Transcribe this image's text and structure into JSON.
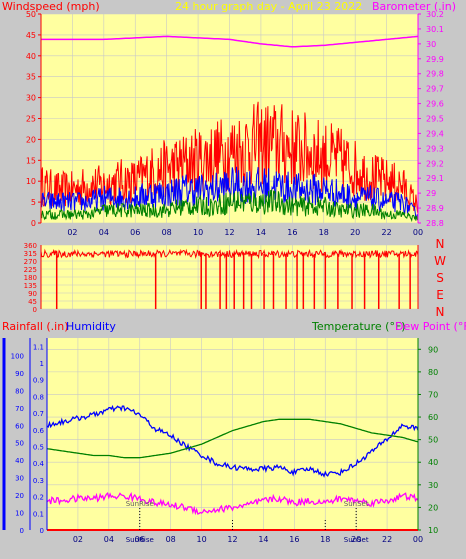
{
  "colors": {
    "background": "#c8c8c8",
    "plot_area": "#ffffa0",
    "grid": "#c8c8c8",
    "windspeed": "#ff0000",
    "wind_gust_mid": "#0000ff",
    "wind_low": "#008000",
    "barometer": "#ff00ff",
    "direction": "#ff0000",
    "rainfall": "#ff0000",
    "humidity": "#0000ff",
    "temperature": "#008000",
    "dewpoint": "#ff00ff",
    "title": "#ffff00",
    "rain_axis": "#0000ff",
    "sun_marker": "#000000"
  },
  "chart_data": [
    {
      "type": "line",
      "name": "wind-barometer",
      "title": "24 hour graph day - April 23 2022",
      "left_label": "Windspeed (mph)",
      "right_label": "Barometer (.in)",
      "x_ticks": [
        "02",
        "04",
        "06",
        "08",
        "10",
        "12",
        "14",
        "16",
        "18",
        "20",
        "22",
        "00"
      ],
      "y_left_ticks": [
        "0",
        "5",
        "10",
        "15",
        "20",
        "25",
        "30",
        "35",
        "40",
        "45",
        "50"
      ],
      "y_left_range": [
        0,
        50
      ],
      "y_right_ticks": [
        "28.8",
        "28.9",
        "29",
        "29.1",
        "29.2",
        "29.3",
        "29.4",
        "29.5",
        "29.6",
        "29.7",
        "29.8",
        "29.9",
        "30",
        "30.1",
        "30.2"
      ],
      "y_right_range": [
        28.8,
        30.2
      ],
      "grid": true,
      "series": [
        {
          "role": "windspeed-high",
          "color": "#ff0000",
          "hour": [
            0,
            1,
            2,
            3,
            4,
            5,
            6,
            7,
            8,
            9,
            10,
            11,
            12,
            13,
            14,
            15,
            16,
            17,
            18,
            19,
            20,
            21,
            22,
            23,
            24
          ],
          "y": [
            9,
            8,
            8,
            9,
            9,
            10,
            10,
            12,
            13,
            14,
            15,
            16,
            17,
            18,
            19,
            19,
            18,
            17,
            16,
            15,
            13,
            11,
            10,
            9,
            4
          ]
        },
        {
          "role": "windspeed-mid",
          "color": "#0000ff",
          "hour": [
            0,
            1,
            2,
            3,
            4,
            5,
            6,
            7,
            8,
            9,
            10,
            11,
            12,
            13,
            14,
            15,
            16,
            17,
            18,
            19,
            20,
            21,
            22,
            23,
            24
          ],
          "y": [
            5,
            5,
            5,
            5,
            6,
            6,
            6,
            7,
            7,
            8,
            8,
            8,
            9,
            9,
            9,
            9,
            8,
            8,
            8,
            7,
            6,
            6,
            5,
            5,
            2
          ]
        },
        {
          "role": "windspeed-low",
          "color": "#008000",
          "hour": [
            0,
            1,
            2,
            3,
            4,
            5,
            6,
            7,
            8,
            9,
            10,
            11,
            12,
            13,
            14,
            15,
            16,
            17,
            18,
            19,
            20,
            21,
            22,
            23,
            24
          ],
          "y": [
            2,
            2,
            2,
            2,
            3,
            3,
            3,
            3,
            3,
            4,
            4,
            4,
            5,
            5,
            5,
            5,
            4,
            4,
            4,
            3,
            3,
            3,
            2,
            2,
            1
          ]
        },
        {
          "role": "barometer",
          "color": "#ff00ff",
          "axis": "right",
          "hour": [
            0,
            2,
            4,
            6,
            8,
            10,
            12,
            14,
            16,
            18,
            20,
            22,
            24
          ],
          "y": [
            30.03,
            30.03,
            30.03,
            30.04,
            30.05,
            30.04,
            30.03,
            30.0,
            29.98,
            29.99,
            30.01,
            30.03,
            30.05
          ]
        }
      ]
    },
    {
      "type": "scatter",
      "name": "wind-direction",
      "y_ticks": [
        "360",
        "315",
        "270",
        "225",
        "180",
        "135",
        "90",
        "45",
        "0"
      ],
      "y_range": [
        0,
        360
      ],
      "compass_labels": [
        "N",
        "W",
        "S",
        "E",
        "N"
      ],
      "x_ticks": [],
      "grid": true,
      "series": [
        {
          "role": "direction",
          "color": "#ff0000",
          "segments": [
            {
              "from": 0,
              "to": 24,
              "base_deg": 310
            },
            {
              "drop_hours": [
                1.0,
                7.3,
                10.2,
                10.5,
                11.4,
                11.8,
                12.3,
                12.9,
                13.4,
                14.2,
                14.8,
                15.6,
                16.3,
                16.7,
                17.4,
                18.1,
                18.9,
                19.8,
                20.6,
                21.5,
                22.8,
                23.5
              ],
              "drop_to_deg": 0
            }
          ]
        }
      ]
    },
    {
      "type": "line",
      "name": "rain-humidity-temp",
      "left_label_1": "Rainfall (.in)",
      "left_label_2": "Humidity",
      "right_label_1": "Temperature (°F)",
      "right_label_2": "Dew Point (°F)",
      "x_ticks": [
        "02",
        "04",
        "06",
        "08",
        "10",
        "12",
        "14",
        "16",
        "18",
        "20",
        "22",
        "00"
      ],
      "rain_ticks": [
        "0",
        "0.1",
        "0.2",
        "0.3",
        "0.4",
        "0.5",
        "0.6",
        "0.7",
        "0.8",
        "0.9",
        "1",
        "1.1"
      ],
      "rain_range": [
        0,
        1.15
      ],
      "humidity_ticks": [
        "0",
        "10",
        "20",
        "30",
        "40",
        "50",
        "60",
        "70",
        "80",
        "90",
        "100"
      ],
      "humidity_range": [
        0,
        110
      ],
      "temp_ticks": [
        "10",
        "20",
        "30",
        "40",
        "50",
        "60",
        "70",
        "80",
        "90"
      ],
      "temp_range": [
        10,
        95
      ],
      "sun_markers": [
        {
          "label": "SunRise",
          "hour": 6.0
        },
        {
          "label": "SunSet",
          "hour": 20.0
        }
      ],
      "extra_markers_hours": [
        12.0,
        18.0
      ],
      "grid": true,
      "series": [
        {
          "role": "humidity",
          "color": "#0000ff",
          "axis": "humidity",
          "hour": [
            0,
            1,
            2,
            3,
            4,
            5,
            6,
            7,
            8,
            9,
            10,
            11,
            12,
            13,
            14,
            15,
            16,
            17,
            18,
            19,
            20,
            21,
            22,
            23,
            24
          ],
          "y": [
            60,
            62,
            64,
            66,
            69,
            70,
            66,
            58,
            54,
            48,
            43,
            38,
            36,
            35,
            35,
            36,
            33,
            35,
            32,
            33,
            38,
            45,
            52,
            60,
            58
          ]
        },
        {
          "role": "temperature",
          "color": "#008000",
          "axis": "temp",
          "hour": [
            0,
            1,
            2,
            3,
            4,
            5,
            6,
            7,
            8,
            9,
            10,
            11,
            12,
            13,
            14,
            15,
            16,
            17,
            18,
            19,
            20,
            21,
            22,
            23,
            24
          ],
          "y": [
            46,
            45,
            44,
            43,
            43,
            42,
            42,
            43,
            44,
            46,
            48,
            51,
            54,
            56,
            58,
            59,
            59,
            59,
            58,
            57,
            55,
            53,
            52,
            51,
            49
          ]
        },
        {
          "role": "dewpoint",
          "color": "#ff00ff",
          "axis": "temp",
          "hour": [
            0,
            1,
            2,
            3,
            4,
            5,
            6,
            7,
            8,
            9,
            10,
            11,
            12,
            13,
            14,
            15,
            16,
            17,
            18,
            19,
            20,
            21,
            22,
            23,
            24
          ],
          "y": [
            23,
            23,
            24,
            24,
            25,
            25,
            24,
            22,
            21,
            20,
            18,
            19,
            20,
            21,
            23,
            24,
            22,
            23,
            22,
            24,
            23,
            22,
            23,
            25,
            24
          ]
        },
        {
          "role": "rainfall",
          "color": "#ff0000",
          "axis": "rain",
          "hour": [
            0,
            24
          ],
          "y": [
            0,
            0
          ]
        }
      ]
    }
  ]
}
